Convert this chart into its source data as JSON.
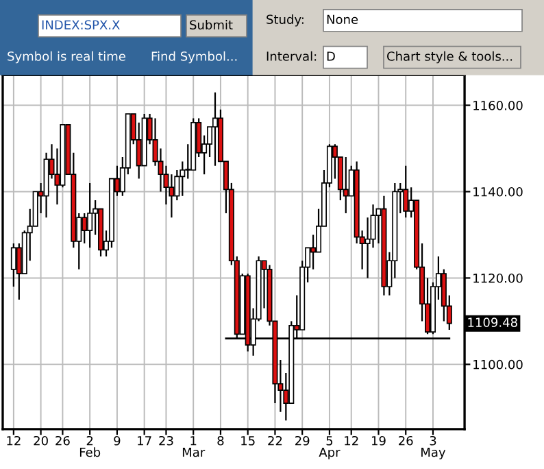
{
  "chart_data": {
    "type": "candlestick",
    "categories": [
      "12",
      null,
      null,
      null,
      null,
      "20",
      null,
      null,
      null,
      "26",
      null,
      null,
      null,
      null,
      "2\nFeb",
      null,
      null,
      null,
      null,
      "9",
      null,
      null,
      null,
      null,
      "17",
      null,
      null,
      null,
      "23",
      null,
      null,
      null,
      null,
      "1\nMar",
      null,
      null,
      null,
      null,
      "8",
      null,
      null,
      null,
      null,
      "15",
      null,
      null,
      null,
      null,
      "22",
      null,
      null,
      null,
      null,
      "29",
      null,
      null,
      null,
      null,
      "5\nApr",
      null,
      null,
      null,
      "12",
      null,
      null,
      null,
      null,
      "19",
      null,
      null,
      null,
      null,
      "26",
      null,
      null,
      null,
      null,
      "3\nMay",
      null,
      null,
      null
    ],
    "ohlc": [
      [
        1122,
        1128,
        1118,
        1127
      ],
      [
        1127,
        1128,
        1115,
        1121
      ],
      [
        1121,
        1131,
        1121,
        1130.5
      ],
      [
        1130.5,
        1136,
        1124,
        1132
      ],
      [
        1132,
        1140,
        1132,
        1140
      ],
      [
        1140,
        1142,
        1135,
        1139
      ],
      [
        1139,
        1149,
        1134,
        1147.5
      ],
      [
        1147.5,
        1151,
        1143,
        1144
      ],
      [
        1144,
        1150,
        1137,
        1141.5
      ],
      [
        1141.5,
        1155.5,
        1141,
        1155.5
      ],
      [
        1155.5,
        1155.5,
        1144,
        1144
      ],
      [
        1144,
        1149,
        1127,
        1128.5
      ],
      [
        1128.5,
        1135,
        1122,
        1134
      ],
      [
        1134,
        1135,
        1128,
        1131
      ],
      [
        1131,
        1142,
        1127,
        1135
      ],
      [
        1135,
        1138,
        1130,
        1136
      ],
      [
        1136,
        1136,
        1125,
        1126.5
      ],
      [
        1126.5,
        1131,
        1125,
        1128.5
      ],
      [
        1128.5,
        1143,
        1127,
        1143
      ],
      [
        1143,
        1146,
        1139,
        1140
      ],
      [
        1140,
        1148,
        1139,
        1145.5
      ],
      [
        1145.5,
        1158,
        1144,
        1158
      ],
      [
        1158,
        1158,
        1151,
        1152
      ],
      [
        1152,
        1156,
        1143,
        1146
      ],
      [
        1146,
        1158,
        1146,
        1157
      ],
      [
        1157,
        1158,
        1151,
        1152
      ],
      [
        1152,
        1157,
        1146,
        1147
      ],
      [
        1147,
        1150,
        1140,
        1144
      ],
      [
        1144,
        1146,
        1137,
        1141
      ],
      [
        1141,
        1144,
        1134,
        1139
      ],
      [
        1139,
        1145,
        1138,
        1143.5
      ],
      [
        1143.5,
        1147,
        1139,
        1145
      ],
      [
        1145,
        1151,
        1143,
        1145
      ],
      [
        1145,
        1157,
        1145,
        1156
      ],
      [
        1156,
        1157,
        1148,
        1149
      ],
      [
        1149,
        1153,
        1144,
        1151
      ],
      [
        1151,
        1155,
        1148,
        1155
      ],
      [
        1155,
        1163,
        1146,
        1157
      ],
      [
        1157,
        1159,
        1147,
        1147
      ],
      [
        1147,
        1147,
        1135,
        1140.5
      ],
      [
        1140.5,
        1142,
        1123,
        1124
      ],
      [
        1124,
        1125,
        1106,
        1107
      ],
      [
        1107,
        1121,
        1107,
        1120.5
      ],
      [
        1120.5,
        1121,
        1103,
        1104.5
      ],
      [
        1104.5,
        1113,
        1102,
        1110.5
      ],
      [
        1110.5,
        1125,
        1110,
        1124
      ],
      [
        1124,
        1124,
        1113,
        1122
      ],
      [
        1122,
        1123,
        1109,
        1110
      ],
      [
        1110,
        1110,
        1091,
        1095.5
      ],
      [
        1095.5,
        1101,
        1089,
        1094
      ],
      [
        1094,
        1098,
        1087,
        1091
      ],
      [
        1091,
        1110,
        1091,
        1109
      ],
      [
        1109,
        1116,
        1106,
        1108
      ],
      [
        1108,
        1124,
        1108,
        1122.5
      ],
      [
        1122.5,
        1127,
        1119,
        1127
      ],
      [
        1127,
        1130,
        1122,
        1126
      ],
      [
        1126,
        1136,
        1126,
        1132
      ],
      [
        1132,
        1145,
        1132,
        1142
      ],
      [
        1142,
        1151,
        1141,
        1150.5
      ],
      [
        1150.5,
        1151,
        1143,
        1148
      ],
      [
        1148,
        1148,
        1138,
        1140.5
      ],
      [
        1140.5,
        1148,
        1135,
        1139
      ],
      [
        1139,
        1146,
        1139,
        1145
      ],
      [
        1145,
        1147,
        1128,
        1129.5
      ],
      [
        1129.5,
        1131,
        1122,
        1128
      ],
      [
        1128,
        1134,
        1120,
        1129
      ],
      [
        1129,
        1137,
        1127,
        1134.5
      ],
      [
        1134.5,
        1136,
        1128,
        1136
      ],
      [
        1136,
        1139,
        1116,
        1118
      ],
      [
        1118,
        1126,
        1116,
        1124
      ],
      [
        1124,
        1142,
        1120,
        1140
      ],
      [
        1140,
        1142,
        1135,
        1140.5
      ],
      [
        1140.5,
        1146,
        1134,
        1135.5
      ],
      [
        1135.5,
        1141,
        1134,
        1138
      ],
      [
        1138,
        1138,
        1122,
        1122.5
      ],
      [
        1122.5,
        1128,
        1110,
        1114
      ],
      [
        1114,
        1120,
        1107,
        1107.5
      ],
      [
        1107.5,
        1119,
        1107,
        1118
      ],
      [
        1118,
        1125,
        1115,
        1121
      ],
      [
        1121,
        1122,
        1110,
        1113.5
      ],
      [
        1113.5,
        1116,
        1108,
        1109.48
      ]
    ],
    "colors": [
      "#ffffff",
      "#dd1111",
      "#ffffff",
      "#ffffff",
      "#ffffff",
      "#dd1111",
      "#ffffff",
      "#dd1111",
      "#dd1111",
      "#ffffff",
      "#dd1111",
      "#dd1111",
      "#ffffff",
      "#dd1111",
      "#ffffff",
      "#ffffff",
      "#dd1111",
      "#ffffff",
      "#ffffff",
      "#dd1111",
      "#ffffff",
      "#ffffff",
      "#dd1111",
      "#dd1111",
      "#ffffff",
      "#dd1111",
      "#dd1111",
      "#dd1111",
      "#dd1111",
      "#dd1111",
      "#ffffff",
      "#ffffff",
      "#ffffff",
      "#ffffff",
      "#dd1111",
      "#ffffff",
      "#ffffff",
      "#ffffff",
      "#dd1111",
      "#dd1111",
      "#dd1111",
      "#dd1111",
      "#ffffff",
      "#dd1111",
      "#ffffff",
      "#ffffff",
      "#dd1111",
      "#dd1111",
      "#dd1111",
      "#dd1111",
      "#dd1111",
      "#ffffff",
      "#dd1111",
      "#ffffff",
      "#ffffff",
      "#dd1111",
      "#ffffff",
      "#ffffff",
      "#ffffff",
      "#dd1111",
      "#dd1111",
      "#dd1111",
      "#ffffff",
      "#dd1111",
      "#dd1111",
      "#ffffff",
      "#ffffff",
      "#ffffff",
      "#dd1111",
      "#ffffff",
      "#ffffff",
      "#ffffff",
      "#dd1111",
      "#ffffff",
      "#dd1111",
      "#dd1111",
      "#dd1111",
      "#ffffff",
      "#ffffff",
      "#dd1111",
      "#dd1111"
    ],
    "series": [
      {
        "type": "line",
        "color": "#000000",
        "values": [
          null,
          null,
          null,
          null,
          null,
          null,
          null,
          null,
          null,
          null,
          null,
          null,
          null,
          null,
          null,
          null,
          null,
          null,
          null,
          null,
          null,
          null,
          null,
          null,
          null,
          null,
          null,
          null,
          null,
          null,
          null,
          null,
          null,
          null,
          null,
          null,
          null,
          null,
          null,
          1106,
          1106,
          1106,
          1106,
          1106,
          1106,
          1106,
          1106,
          1106,
          1106,
          1106,
          1106,
          1106,
          1106,
          1106,
          1106,
          1106,
          1106,
          1106,
          1106,
          1106,
          1106,
          1106,
          1106,
          1106,
          1106,
          1106,
          1106,
          1106,
          1106,
          1106,
          1106,
          1106,
          1106,
          1106,
          1106,
          1106,
          1106,
          1106,
          1106,
          1106,
          1106
        ]
      }
    ],
    "ylim": [
      1085,
      1167
    ],
    "yticks": [
      {
        "value": 1100,
        "label": "1100.00"
      },
      {
        "value": 1120,
        "label": "1120.00"
      },
      {
        "value": 1140,
        "label": "1140.00"
      },
      {
        "value": 1160,
        "label": "1160.00"
      }
    ],
    "grid": true,
    "annotations": [
      "1109.48",
      "INDEX:SPX.X",
      "Submit",
      "Symbol is real time",
      "Find Symbol...",
      "Study:",
      "None",
      "Interval:",
      "D",
      "Chart style & tools..."
    ]
  }
}
